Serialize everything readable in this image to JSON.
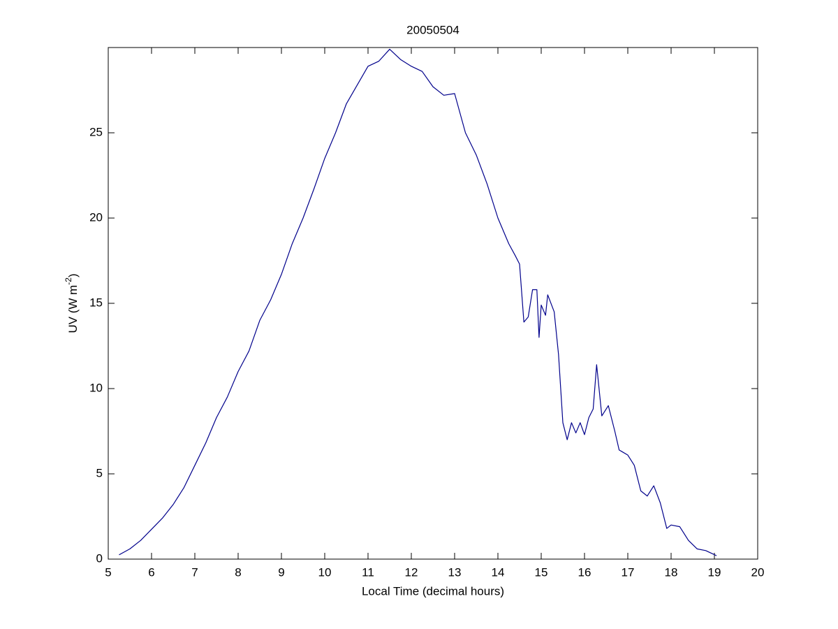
{
  "chart_data": {
    "type": "line",
    "title": "20050504",
    "x_label": "Local Time (decimal hours)",
    "y_label": {
      "text": "UV (W m",
      "superscript": "-2",
      "suffix": ")"
    },
    "xlim": [
      5,
      20
    ],
    "xticks": [
      5,
      6,
      7,
      8,
      9,
      10,
      11,
      12,
      13,
      14,
      15,
      16,
      17,
      18,
      19,
      20
    ],
    "ylim": [
      0,
      30
    ],
    "yticks": [
      0,
      5,
      10,
      15,
      20,
      25
    ],
    "grid": false,
    "series": [
      {
        "color": "#00008b",
        "x": [
          5.25,
          5.5,
          5.75,
          6.0,
          6.25,
          6.5,
          6.75,
          7.0,
          7.25,
          7.5,
          7.75,
          8.0,
          8.25,
          8.5,
          8.75,
          9.0,
          9.25,
          9.5,
          9.75,
          10.0,
          10.25,
          10.5,
          10.75,
          11.0,
          11.25,
          11.5,
          11.75,
          12.0,
          12.25,
          12.5,
          12.75,
          13.0,
          13.25,
          13.5,
          13.75,
          14.0,
          14.25,
          14.4,
          14.5,
          14.6,
          14.7,
          14.8,
          14.9,
          14.95,
          15.0,
          15.1,
          15.15,
          15.3,
          15.4,
          15.5,
          15.6,
          15.7,
          15.8,
          15.9,
          16.0,
          16.1,
          16.2,
          16.28,
          16.4,
          16.55,
          16.7,
          16.8,
          17.0,
          17.15,
          17.3,
          17.45,
          17.6,
          17.75,
          17.9,
          18.0,
          18.2,
          18.4,
          18.6,
          18.8,
          19.05
        ],
        "values": [
          0.25,
          0.6,
          1.1,
          1.75,
          2.4,
          3.2,
          4.2,
          5.5,
          6.8,
          8.3,
          9.5,
          11.0,
          12.2,
          14.0,
          15.2,
          16.7,
          18.5,
          20.0,
          21.7,
          23.5,
          25.0,
          26.7,
          27.8,
          28.9,
          29.2,
          29.9,
          29.3,
          28.9,
          28.6,
          27.7,
          27.2,
          27.3,
          25.0,
          23.7,
          22.0,
          20.0,
          18.5,
          17.8,
          17.3,
          13.9,
          14.2,
          15.8,
          15.8,
          13.0,
          14.9,
          14.3,
          15.5,
          14.5,
          12.0,
          8.0,
          7.0,
          8.0,
          7.4,
          8.0,
          7.3,
          8.3,
          8.8,
          11.4,
          8.4,
          9.0,
          7.5,
          6.4,
          6.1,
          5.5,
          4.0,
          3.7,
          4.3,
          3.3,
          1.8,
          2.0,
          1.9,
          1.1,
          0.6,
          0.5,
          0.2
        ]
      }
    ]
  }
}
